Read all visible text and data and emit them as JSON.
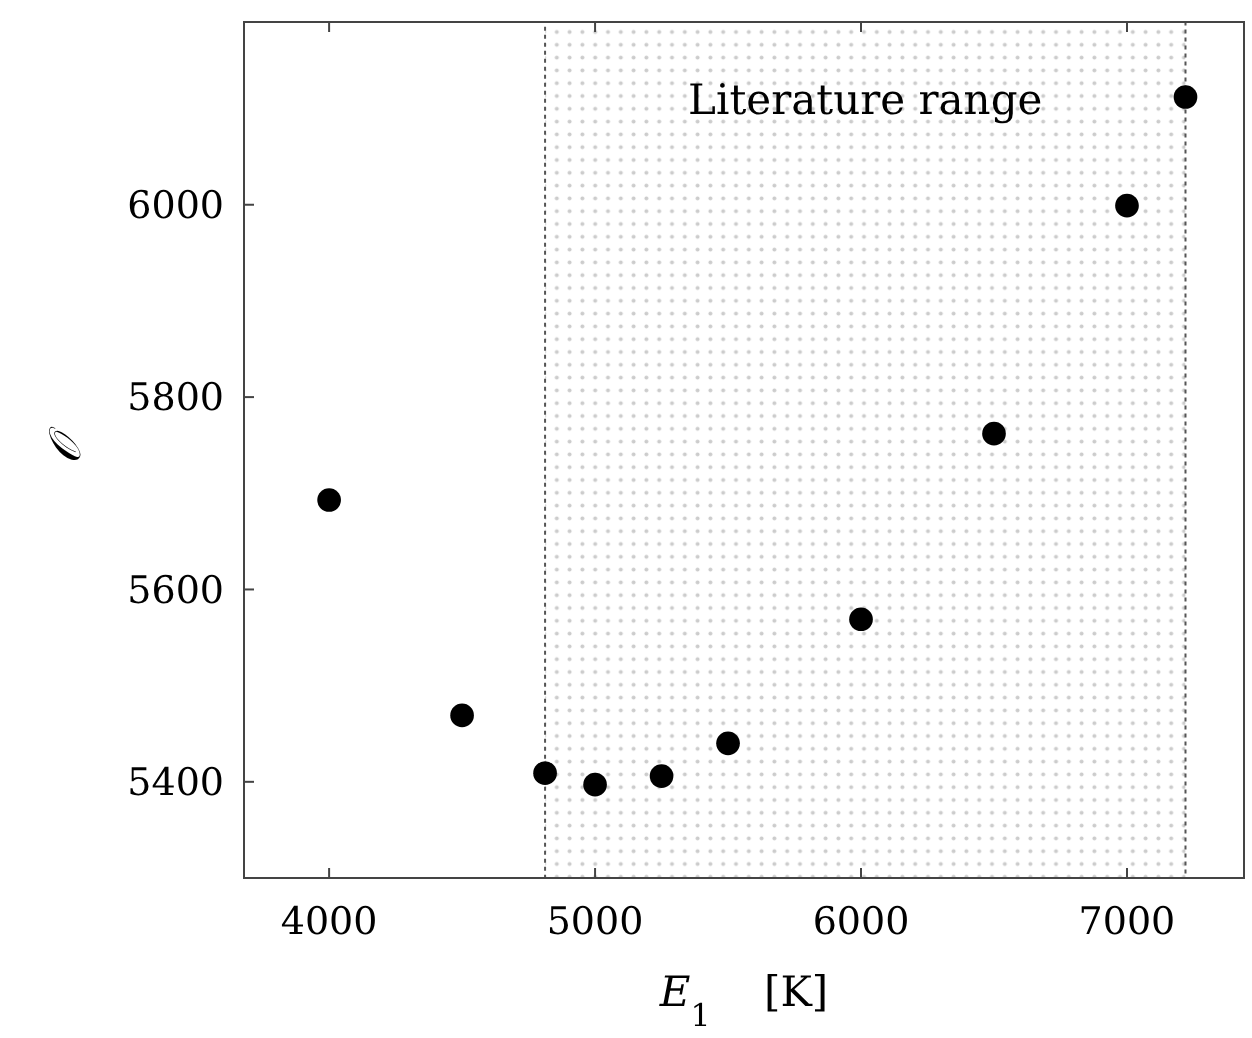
{
  "chart_data": {
    "type": "scatter",
    "xlabel": "E$_{1}$    [K]",
    "ylabel": "𝒪",
    "x": [
      4000,
      4500,
      4812,
      5000,
      5250,
      5500,
      6000,
      6500,
      7000,
      7220
    ],
    "series": [
      {
        "color": "#000000",
        "values": [
          5693,
          5469,
          5409,
          5397,
          5406,
          5440,
          5569,
          5762,
          5999,
          6112
        ]
      }
    ],
    "xlim": [
      3680,
      7440
    ],
    "ylim": [
      5300,
      6190
    ],
    "xticks": [
      4000,
      5000,
      6000,
      7000
    ],
    "yticks": [
      5400,
      5600,
      5800,
      6000
    ],
    "bands": [
      {
        "axis": "x",
        "from": 4812,
        "to": 7220,
        "label": "Literature range",
        "color": "#555555"
      }
    ],
    "marker": "circle",
    "grid": false
  }
}
